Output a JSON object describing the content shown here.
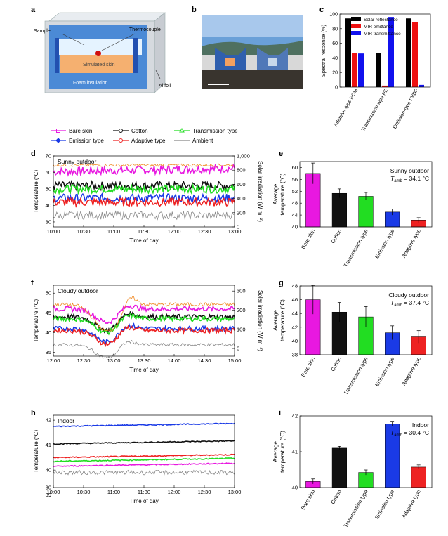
{
  "panel_labels": {
    "a": "a",
    "b": "b",
    "c": "c",
    "d": "d",
    "e": "e",
    "f": "f",
    "g": "g",
    "h": "h",
    "i": "i"
  },
  "panel_a": {
    "labels": {
      "sample": "Sample",
      "thermocouple": "Thermocouple",
      "simulated_skin": "Simulated skin",
      "foam": "Foam insulation",
      "foil": "Al foil"
    }
  },
  "legend": [
    "Bare skin",
    "Cotton",
    "Transmission type",
    "Emission type",
    "Adaptive type",
    "Ambient"
  ],
  "colors": {
    "bare": "#e818e0",
    "cotton": "#111111",
    "trans": "#22dd22",
    "emis": "#1a3ae6",
    "adapt": "#ee2222",
    "amb": "#888888",
    "solar": "#f08820",
    "refl": "#000000",
    "emit": "#ee1111",
    "transm": "#1111ee"
  },
  "chart_data": [
    {
      "id": "c",
      "type": "bar",
      "ylabel": "Spectral response (%)",
      "ylim": [
        0,
        100
      ],
      "yticks": [
        "0",
        "20",
        "40",
        "60",
        "80",
        "100"
      ],
      "categories": [
        "Adaptive-type POM",
        "Transmission-type PE",
        "Emission-type PVDF"
      ],
      "series": [
        {
          "name": "Solar reflectance",
          "values": [
            94,
            47,
            94
          ]
        },
        {
          "name": "MIR emittance",
          "values": [
            47,
            2,
            89
          ]
        },
        {
          "name": "MIR transmittance",
          "values": [
            46,
            96,
            3
          ]
        }
      ]
    },
    {
      "id": "d",
      "type": "line",
      "annotation": "Sunny outdoor",
      "xlabel": "Time of day",
      "ylabel": "Temperature (°C)",
      "y2label": "Solar irradiation (W m⁻²)",
      "xticks": [
        "10:00",
        "10:30",
        "11:00",
        "11:30",
        "12:00",
        "12:30",
        "13:00"
      ],
      "yticks": [
        "30",
        "40",
        "50",
        "60",
        "70"
      ],
      "y2ticks": [
        "0",
        "200",
        "400",
        "600",
        "800",
        "1,000"
      ],
      "ylim": [
        27,
        70
      ],
      "y2lim": [
        0,
        1000
      ],
      "series": [
        {
          "name": "Bare skin",
          "approx_mean": 60.5
        },
        {
          "name": "Cotton",
          "approx_mean": 52
        },
        {
          "name": "Transmission type",
          "approx_mean": 50
        },
        {
          "name": "Emission type",
          "approx_mean": 44.5
        },
        {
          "name": "Adaptive type",
          "approx_mean": 42
        },
        {
          "name": "Ambient",
          "approx_mean": 34
        },
        {
          "name": "Solar irradiation",
          "approx_mean": 870
        }
      ]
    },
    {
      "id": "e",
      "type": "bar",
      "annotation": "Sunny outdoor",
      "tamb": "T",
      "tamb_sub": "amb",
      "tamb_val": " = 34.1 °C",
      "ylabel": "Average temperature (°C)",
      "ylim": [
        40,
        62
      ],
      "yticks": [
        "40",
        "44",
        "48",
        "52",
        "56",
        "60"
      ],
      "categories": [
        "Bare skin",
        "Cotton",
        "Transmission type",
        "Emission type",
        "Adaptive type"
      ],
      "values": [
        58,
        51.3,
        50.3,
        45,
        42.3
      ],
      "errors": [
        3.5,
        1.5,
        1.3,
        1.0,
        0.8
      ]
    },
    {
      "id": "f",
      "type": "line",
      "annotation": "Cloudy outdoor",
      "xlabel": "Time of day",
      "ylabel": "Temperature (°C)",
      "y2label": "Solar irradiation (W m⁻²)",
      "xticks": [
        "12:00",
        "12:30",
        "13:00",
        "13:30",
        "14:00",
        "14:30",
        "15:00"
      ],
      "yticks": [
        "35",
        "40",
        "45",
        "50"
      ],
      "y2ticks": [
        "0",
        "100",
        "200",
        "300"
      ],
      "ylim": [
        34,
        52
      ],
      "y2lim": [
        -40,
        330
      ],
      "series": [
        {
          "name": "Bare skin",
          "approx_mean": 46
        },
        {
          "name": "Cotton",
          "approx_mean": 44
        },
        {
          "name": "Transmission type",
          "approx_mean": 43.5
        },
        {
          "name": "Emission type",
          "approx_mean": 41
        },
        {
          "name": "Adaptive type",
          "approx_mean": 40.5
        },
        {
          "name": "Ambient",
          "approx_mean": 37.4
        },
        {
          "name": "Solar irradiation",
          "approx_mean": 230
        }
      ]
    },
    {
      "id": "g",
      "type": "bar",
      "annotation": "Cloudy outdoor",
      "tamb": "T",
      "tamb_sub": "amb",
      "tamb_val": " = 37.4 °C",
      "ylabel": "Average temperature (°C)",
      "ylim": [
        38,
        48
      ],
      "yticks": [
        "38",
        "40",
        "42",
        "44",
        "46",
        "48"
      ],
      "categories": [
        "Bare skin",
        "Cotton",
        "Transmission type",
        "Emission type",
        "Adaptive type"
      ],
      "values": [
        46.0,
        44.2,
        43.5,
        41.2,
        40.6
      ],
      "errors": [
        2.1,
        1.4,
        1.5,
        1.0,
        0.9
      ]
    },
    {
      "id": "h",
      "type": "line",
      "annotation": "Indoor",
      "xlabel": "Time of day",
      "ylabel": "Temperature (°C)",
      "xticks": [
        "10:00",
        "10:30",
        "11:00",
        "11:30",
        "12:00",
        "12:30",
        "13:00"
      ],
      "yticks": [
        "39",
        "40",
        "41",
        "42"
      ],
      "y2ticks": [
        "30"
      ],
      "ylim": [
        39.3,
        42.2
      ],
      "series": [
        {
          "name": "Emission type",
          "approx_mean": 41.8
        },
        {
          "name": "Cotton",
          "approx_mean": 41.1
        },
        {
          "name": "Adaptive type",
          "approx_mean": 40.55
        },
        {
          "name": "Transmission type",
          "approx_mean": 40.4
        },
        {
          "name": "Bare skin",
          "approx_mean": 40.2
        },
        {
          "name": "Ambient",
          "approx_mean": 39.9
        }
      ]
    },
    {
      "id": "i",
      "type": "bar",
      "annotation": "Indoor",
      "tamb": "T",
      "tamb_sub": "amb",
      "tamb_val": " = 30.4 °C",
      "ylabel": "Average temperature (°C)",
      "ylim": [
        40,
        42
      ],
      "yticks": [
        "40",
        "41",
        "42"
      ],
      "categories": [
        "Bare skin",
        "Cotton",
        "Transmission type",
        "Emission type",
        "Adaptive type"
      ],
      "values": [
        40.17,
        41.1,
        40.42,
        41.77,
        40.57
      ],
      "errors": [
        0.07,
        0.05,
        0.07,
        0.06,
        0.06
      ]
    }
  ]
}
